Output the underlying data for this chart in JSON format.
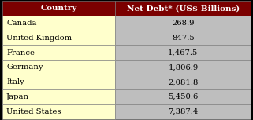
{
  "header": [
    "Country",
    "Net Debt* (US$ Billions)"
  ],
  "rows": [
    [
      "Canada",
      "268.9"
    ],
    [
      "United Kingdom",
      "847.5"
    ],
    [
      "France",
      "1,467.5"
    ],
    [
      "Germany",
      "1,806.9"
    ],
    [
      "Italy",
      "2,081.8"
    ],
    [
      "Japan",
      "5,450.6"
    ],
    [
      "United States",
      "7,387.4"
    ]
  ],
  "header_bg": "#7B0000",
  "header_fg": "#FFFFFF",
  "row_bg_left": "#FFFFCC",
  "row_bg_right": "#BEBEBE",
  "border_color": "#888888",
  "outer_border": "#000000",
  "header_fontsize": 7.5,
  "row_fontsize": 7.2,
  "col_split": 0.455
}
